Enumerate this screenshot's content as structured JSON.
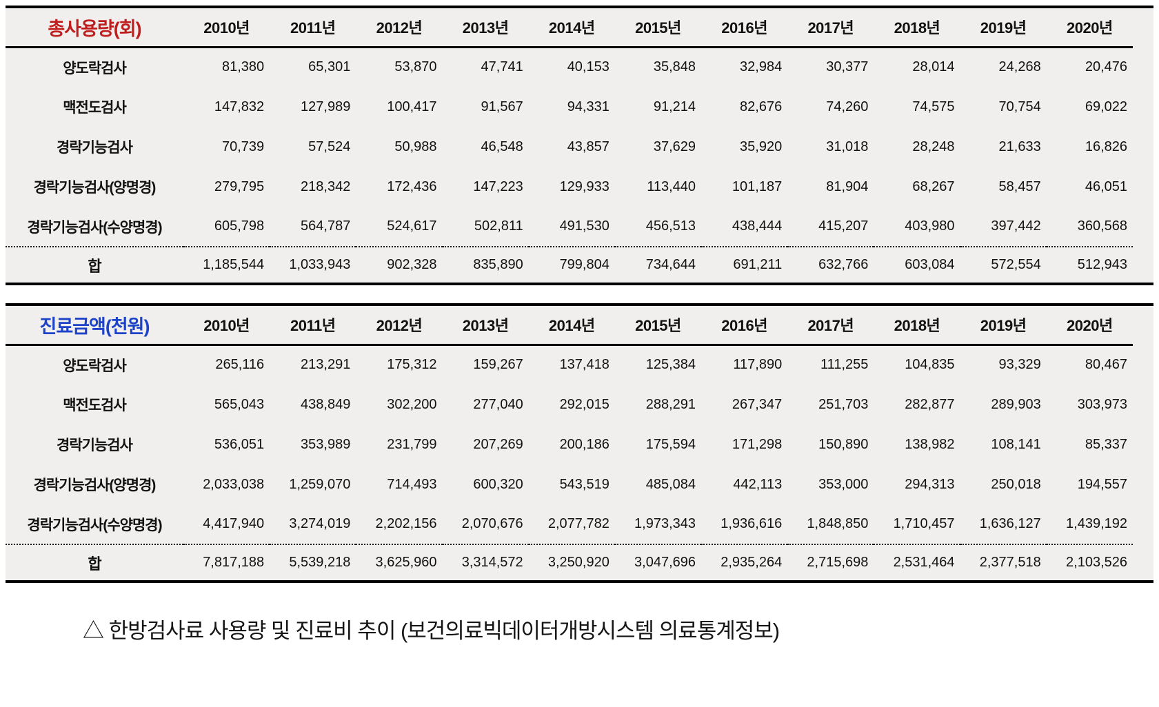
{
  "colors": {
    "table1_title": "#bf1e1e",
    "table2_title": "#1c43c8",
    "table_background": "#f0efed",
    "border": "#000000"
  },
  "years": [
    "2010년",
    "2011년",
    "2012년",
    "2013년",
    "2014년",
    "2015년",
    "2016년",
    "2017년",
    "2018년",
    "2019년",
    "2020년"
  ],
  "tables": [
    {
      "title": "총사용량(회)",
      "title_color": "#bf1e1e",
      "rows": [
        {
          "label": "양도락검사",
          "values": [
            "81,380",
            "65,301",
            "53,870",
            "47,741",
            "40,153",
            "35,848",
            "32,984",
            "30,377",
            "28,014",
            "24,268",
            "20,476"
          ]
        },
        {
          "label": "맥전도검사",
          "values": [
            "147,832",
            "127,989",
            "100,417",
            "91,567",
            "94,331",
            "91,214",
            "82,676",
            "74,260",
            "74,575",
            "70,754",
            "69,022"
          ]
        },
        {
          "label": "경락기능검사",
          "values": [
            "70,739",
            "57,524",
            "50,988",
            "46,548",
            "43,857",
            "37,629",
            "35,920",
            "31,018",
            "28,248",
            "21,633",
            "16,826"
          ]
        },
        {
          "label": "경락기능검사(양명경)",
          "values": [
            "279,795",
            "218,342",
            "172,436",
            "147,223",
            "129,933",
            "113,440",
            "101,187",
            "81,904",
            "68,267",
            "58,457",
            "46,051"
          ]
        },
        {
          "label": "경락기능검사(수양명경)",
          "values": [
            "605,798",
            "564,787",
            "524,617",
            "502,811",
            "491,530",
            "456,513",
            "438,444",
            "415,207",
            "403,980",
            "397,442",
            "360,568"
          ]
        }
      ],
      "total": {
        "label": "합",
        "values": [
          "1,185,544",
          "1,033,943",
          "902,328",
          "835,890",
          "799,804",
          "734,644",
          "691,211",
          "632,766",
          "603,084",
          "572,554",
          "512,943"
        ]
      }
    },
    {
      "title": "진료금액(천원)",
      "title_color": "#1c43c8",
      "rows": [
        {
          "label": "양도락검사",
          "values": [
            "265,116",
            "213,291",
            "175,312",
            "159,267",
            "137,418",
            "125,384",
            "117,890",
            "111,255",
            "104,835",
            "93,329",
            "80,467"
          ]
        },
        {
          "label": "맥전도검사",
          "values": [
            "565,043",
            "438,849",
            "302,200",
            "277,040",
            "292,015",
            "288,291",
            "267,347",
            "251,703",
            "282,877",
            "289,903",
            "303,973"
          ]
        },
        {
          "label": "경락기능검사",
          "values": [
            "536,051",
            "353,989",
            "231,799",
            "207,269",
            "200,186",
            "175,594",
            "171,298",
            "150,890",
            "138,982",
            "108,141",
            "85,337"
          ]
        },
        {
          "label": "경락기능검사(양명경)",
          "values": [
            "2,033,038",
            "1,259,070",
            "714,493",
            "600,320",
            "543,519",
            "485,084",
            "442,113",
            "353,000",
            "294,313",
            "250,018",
            "194,557"
          ]
        },
        {
          "label": "경락기능검사(수양명경)",
          "values": [
            "4,417,940",
            "3,274,019",
            "2,202,156",
            "2,070,676",
            "2,077,782",
            "1,973,343",
            "1,936,616",
            "1,848,850",
            "1,710,457",
            "1,636,127",
            "1,439,192"
          ]
        }
      ],
      "total": {
        "label": "합",
        "values": [
          "7,817,188",
          "5,539,218",
          "3,625,960",
          "3,314,572",
          "3,250,920",
          "3,047,696",
          "2,935,264",
          "2,715,698",
          "2,531,464",
          "2,377,518",
          "2,103,526"
        ]
      }
    }
  ],
  "caption": "△ 한방검사료 사용량 및 진료비 추이 (보건의료빅데이터개방시스템 의료통계정보)"
}
